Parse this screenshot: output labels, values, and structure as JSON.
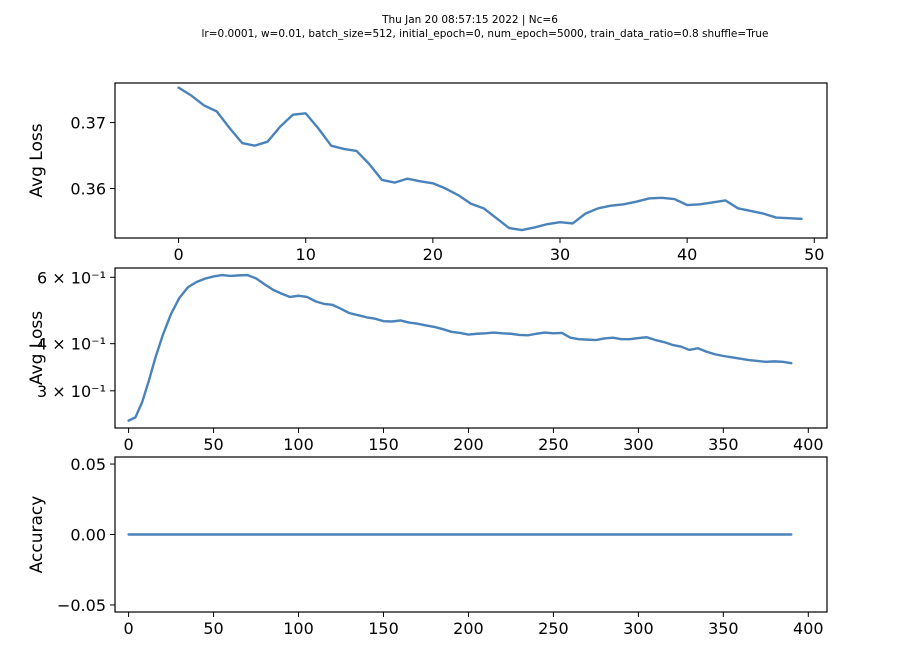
{
  "figure": {
    "title_line1": "Thu Jan 20 08:57:15 2022 | Nc=6",
    "title_line2": "lr=0.0001, w=0.01, batch_size=512, initial_epoch=0, num_epoch=5000, train_data_ratio=0.8 shuffle=True"
  },
  "chart_data": [
    {
      "type": "line",
      "ylabel": "Avg Loss",
      "xlim": [
        -5,
        51
      ],
      "ylim": [
        0.3525,
        0.376
      ],
      "xticks": [
        0,
        10,
        20,
        30,
        40,
        50
      ],
      "xtick_labels": [
        "0",
        "10",
        "20",
        "30",
        "40",
        "50"
      ],
      "yticks": [
        0.36,
        0.37
      ],
      "ytick_labels": [
        "0.36",
        "0.37"
      ],
      "series": [
        {
          "color": "#4a82ba",
          "x": [
            0,
            1,
            2,
            3,
            4,
            5,
            6,
            7,
            8,
            9,
            10,
            11,
            12,
            13,
            14,
            15,
            16,
            17,
            18,
            19,
            20,
            21,
            22,
            23,
            24,
            25,
            26,
            27,
            28,
            29,
            30,
            31,
            32,
            33,
            34,
            35,
            36,
            37,
            38,
            39,
            40,
            41,
            42,
            43,
            44,
            45,
            46,
            47,
            48,
            49
          ],
          "y": [
            0.3753,
            0.3741,
            0.3726,
            0.3717,
            0.3692,
            0.3669,
            0.3665,
            0.3671,
            0.3694,
            0.3712,
            0.3714,
            0.3691,
            0.3665,
            0.366,
            0.3657,
            0.3637,
            0.3613,
            0.3609,
            0.3615,
            0.3611,
            0.3608,
            0.36,
            0.359,
            0.3577,
            0.357,
            0.3555,
            0.354,
            0.3537,
            0.3541,
            0.3546,
            0.3549,
            0.3547,
            0.3562,
            0.357,
            0.3574,
            0.3576,
            0.358,
            0.3585,
            0.3586,
            0.3584,
            0.3575,
            0.3576,
            0.3579,
            0.3582,
            0.357,
            0.3566,
            0.3562,
            0.3556,
            0.3555,
            0.3554
          ]
        }
      ]
    },
    {
      "type": "line",
      "ylabel": "Avg Loss",
      "yscale": "log",
      "xlim": [
        -8,
        411
      ],
      "ylim": [
        0.239,
        0.635
      ],
      "xticks": [
        0,
        50,
        100,
        150,
        200,
        250,
        300,
        350,
        400
      ],
      "xtick_labels": [
        "0",
        "50",
        "100",
        "150",
        "200",
        "250",
        "300",
        "350",
        "400"
      ],
      "yticks": [
        0.3,
        0.4,
        0.6
      ],
      "ytick_labels": [
        "3 × 10⁻¹",
        "4 × 10⁻¹",
        "6 × 10⁻¹"
      ],
      "series": [
        {
          "color": "#4a82ba",
          "x": [
            0,
            4,
            8,
            12,
            16,
            20,
            25,
            30,
            35,
            40,
            45,
            50,
            55,
            60,
            65,
            70,
            75,
            80,
            85,
            90,
            95,
            100,
            105,
            110,
            115,
            120,
            125,
            130,
            135,
            140,
            145,
            150,
            155,
            160,
            165,
            170,
            175,
            180,
            185,
            190,
            195,
            200,
            205,
            210,
            215,
            220,
            225,
            230,
            235,
            240,
            245,
            250,
            255,
            260,
            265,
            270,
            275,
            280,
            285,
            290,
            295,
            300,
            305,
            310,
            315,
            320,
            325,
            330,
            335,
            340,
            345,
            350,
            355,
            360,
            365,
            370,
            375,
            380,
            385,
            390
          ],
          "y": [
            0.25,
            0.255,
            0.28,
            0.32,
            0.37,
            0.42,
            0.48,
            0.53,
            0.565,
            0.583,
            0.595,
            0.603,
            0.608,
            0.605,
            0.607,
            0.608,
            0.596,
            0.575,
            0.556,
            0.543,
            0.532,
            0.536,
            0.532,
            0.518,
            0.51,
            0.507,
            0.495,
            0.482,
            0.476,
            0.47,
            0.466,
            0.459,
            0.458,
            0.461,
            0.455,
            0.452,
            0.447,
            0.443,
            0.437,
            0.43,
            0.427,
            0.423,
            0.425,
            0.426,
            0.428,
            0.426,
            0.425,
            0.422,
            0.421,
            0.425,
            0.428,
            0.426,
            0.427,
            0.415,
            0.411,
            0.41,
            0.409,
            0.413,
            0.415,
            0.411,
            0.411,
            0.414,
            0.416,
            0.409,
            0.404,
            0.397,
            0.393,
            0.385,
            0.389,
            0.381,
            0.375,
            0.371,
            0.368,
            0.365,
            0.362,
            0.36,
            0.358,
            0.359,
            0.358,
            0.355
          ]
        }
      ]
    },
    {
      "type": "line",
      "ylabel": "Accuracy",
      "xlim": [
        -8,
        411
      ],
      "ylim": [
        -0.055,
        0.055
      ],
      "xticks": [
        0,
        50,
        100,
        150,
        200,
        250,
        300,
        350,
        400
      ],
      "xtick_labels": [
        "0",
        "50",
        "100",
        "150",
        "200",
        "250",
        "300",
        "350",
        "400"
      ],
      "yticks": [
        -0.05,
        0.0,
        0.05
      ],
      "ytick_labels": [
        "−0.05",
        "0.00",
        "0.05"
      ],
      "series": [
        {
          "color": "#4a82ba",
          "x": [
            0,
            390
          ],
          "y": [
            0,
            0
          ]
        }
      ]
    }
  ]
}
